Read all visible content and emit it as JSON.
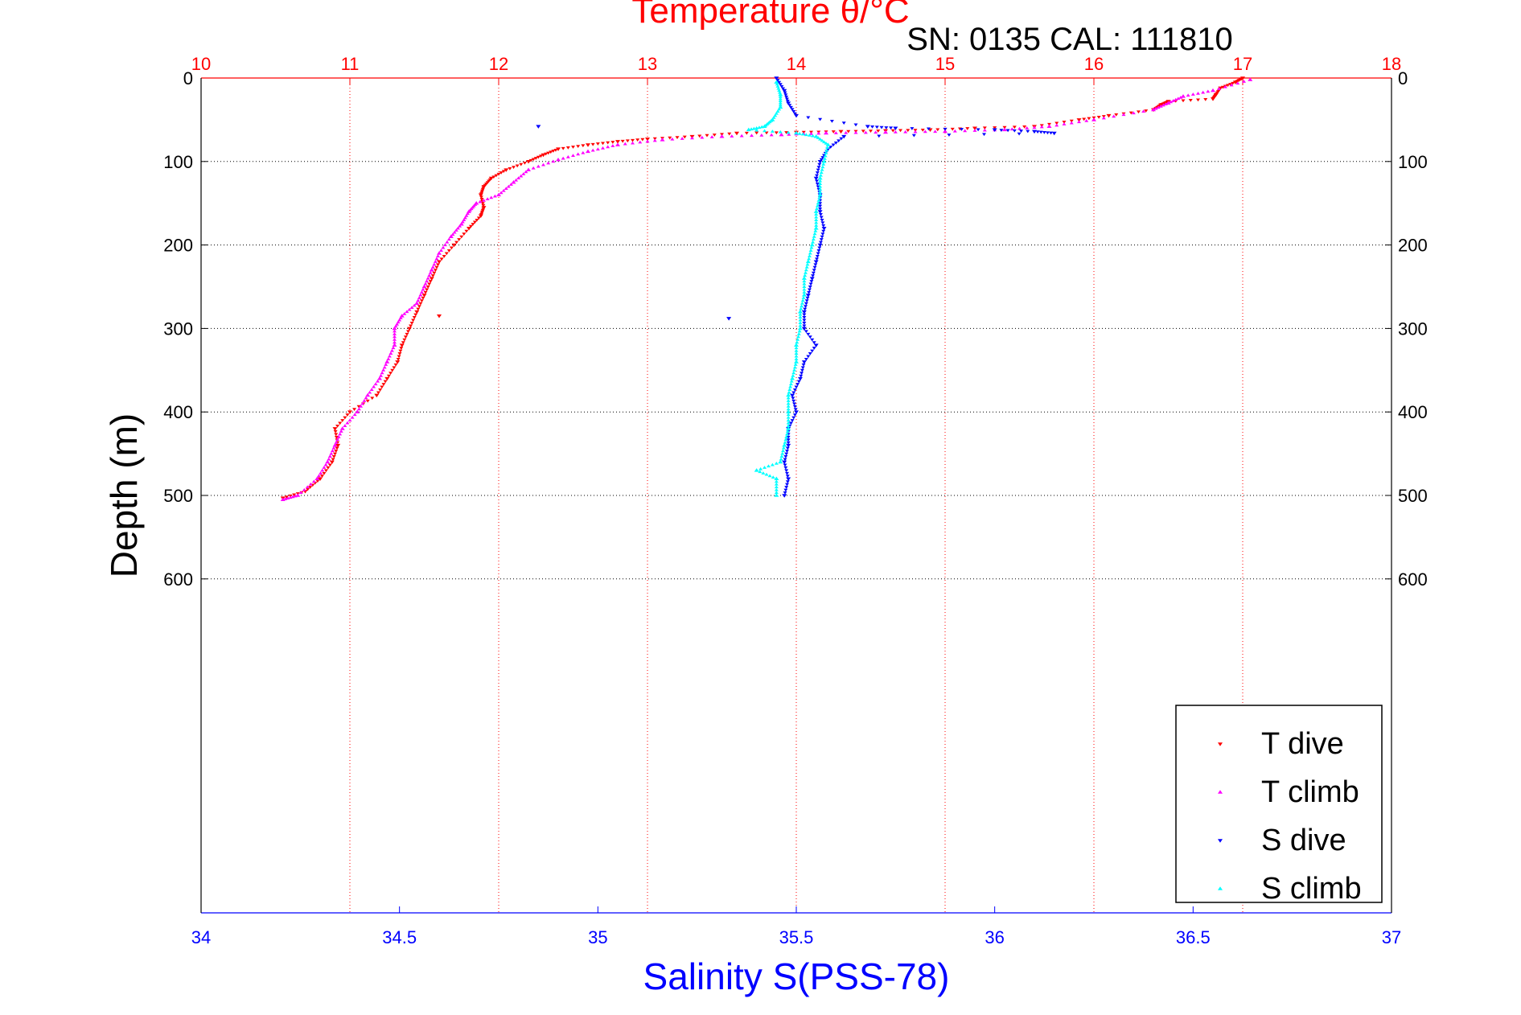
{
  "chart_data": {
    "type": "scatter",
    "title": "Temperature θ/°C",
    "annotation": "SN: 0135  CAL: 111810",
    "xlabel": "Salinity S(PSS-78)",
    "ylabel": "Depth (m)",
    "grid": true,
    "legend_position": "bottom-right",
    "temperature_axis": {
      "position": "top",
      "color": "#ff0000",
      "range": [
        10,
        18
      ],
      "ticks": [
        "10",
        "11",
        "12",
        "13",
        "14",
        "15",
        "16",
        "17",
        "18"
      ]
    },
    "salinity_axis": {
      "position": "bottom",
      "color": "#0000ff",
      "range": [
        34,
        37
      ],
      "ticks": [
        "34",
        "34.5",
        "35",
        "35.5",
        "36",
        "36.5",
        "37"
      ]
    },
    "depth_axis": {
      "range": [
        0,
        1000
      ],
      "reversed": true,
      "ticks": [
        "0",
        "100",
        "200",
        "300",
        "400",
        "500",
        "600"
      ]
    },
    "series": [
      {
        "name": "T dive",
        "axis": "temperature",
        "color": "#ff0000",
        "marker": "triangle-down",
        "points": [
          [
            17.0,
            0
          ],
          [
            16.95,
            5
          ],
          [
            16.85,
            12
          ],
          [
            16.82,
            20
          ],
          [
            16.8,
            25
          ],
          [
            16.5,
            28
          ],
          [
            16.45,
            32
          ],
          [
            16.4,
            38
          ],
          [
            16.1,
            45
          ],
          [
            15.9,
            50
          ],
          [
            15.6,
            58
          ],
          [
            15.2,
            60
          ],
          [
            14.9,
            62
          ],
          [
            14.6,
            63
          ],
          [
            14.3,
            64
          ],
          [
            14.0,
            65
          ],
          [
            13.6,
            66
          ],
          [
            13.3,
            70
          ],
          [
            13.0,
            73
          ],
          [
            12.8,
            76
          ],
          [
            12.6,
            80
          ],
          [
            12.4,
            85
          ],
          [
            12.3,
            92
          ],
          [
            12.2,
            100
          ],
          [
            12.05,
            110
          ],
          [
            11.95,
            120
          ],
          [
            11.9,
            130
          ],
          [
            11.88,
            140
          ],
          [
            11.9,
            155
          ],
          [
            11.88,
            165
          ],
          [
            11.8,
            180
          ],
          [
            11.7,
            200
          ],
          [
            11.6,
            220
          ],
          [
            11.55,
            240
          ],
          [
            11.5,
            260
          ],
          [
            11.45,
            280
          ],
          [
            11.4,
            300
          ],
          [
            11.35,
            320
          ],
          [
            11.32,
            340
          ],
          [
            11.25,
            360
          ],
          [
            11.18,
            380
          ],
          [
            11.0,
            400
          ],
          [
            10.9,
            420
          ],
          [
            10.92,
            440
          ],
          [
            10.88,
            460
          ],
          [
            10.8,
            480
          ],
          [
            10.7,
            495
          ],
          [
            10.55,
            503
          ],
          [
            11.6,
            285
          ]
        ]
      },
      {
        "name": "T climb",
        "axis": "temperature",
        "color": "#ff00ff",
        "marker": "triangle-up",
        "points": [
          [
            17.05,
            2
          ],
          [
            16.8,
            15
          ],
          [
            16.6,
            22
          ],
          [
            16.5,
            30
          ],
          [
            16.4,
            38
          ],
          [
            16.0,
            50
          ],
          [
            15.7,
            58
          ],
          [
            15.4,
            62
          ],
          [
            15.0,
            64
          ],
          [
            14.6,
            65
          ],
          [
            14.2,
            66
          ],
          [
            13.9,
            68
          ],
          [
            13.5,
            70
          ],
          [
            13.1,
            74
          ],
          [
            12.8,
            80
          ],
          [
            12.6,
            88
          ],
          [
            12.4,
            98
          ],
          [
            12.2,
            110
          ],
          [
            12.1,
            125
          ],
          [
            12.0,
            140
          ],
          [
            11.85,
            150
          ],
          [
            11.8,
            160
          ],
          [
            11.75,
            175
          ],
          [
            11.68,
            190
          ],
          [
            11.6,
            210
          ],
          [
            11.55,
            230
          ],
          [
            11.5,
            250
          ],
          [
            11.45,
            270
          ],
          [
            11.35,
            285
          ],
          [
            11.3,
            300
          ],
          [
            11.3,
            320
          ],
          [
            11.25,
            340
          ],
          [
            11.2,
            360
          ],
          [
            11.12,
            380
          ],
          [
            11.05,
            400
          ],
          [
            10.95,
            420
          ],
          [
            10.9,
            440
          ],
          [
            10.85,
            460
          ],
          [
            10.78,
            480
          ],
          [
            10.65,
            500
          ],
          [
            10.55,
            505
          ]
        ]
      },
      {
        "name": "S dive",
        "axis": "salinity",
        "color": "#0000ff",
        "marker": "triangle-down",
        "points": [
          [
            35.45,
            0
          ],
          [
            35.47,
            15
          ],
          [
            35.48,
            30
          ],
          [
            35.5,
            45
          ],
          [
            35.68,
            58
          ],
          [
            35.75,
            60
          ],
          [
            36.0,
            62
          ],
          [
            36.1,
            64
          ],
          [
            36.15,
            66
          ],
          [
            35.62,
            70
          ],
          [
            35.58,
            85
          ],
          [
            35.56,
            100
          ],
          [
            35.55,
            120
          ],
          [
            35.56,
            140
          ],
          [
            35.56,
            160
          ],
          [
            35.57,
            180
          ],
          [
            35.56,
            200
          ],
          [
            35.55,
            220
          ],
          [
            35.54,
            240
          ],
          [
            35.53,
            260
          ],
          [
            35.52,
            280
          ],
          [
            35.52,
            300
          ],
          [
            35.55,
            320
          ],
          [
            35.52,
            340
          ],
          [
            35.51,
            360
          ],
          [
            35.49,
            380
          ],
          [
            35.5,
            400
          ],
          [
            35.48,
            420
          ],
          [
            35.48,
            440
          ],
          [
            35.47,
            460
          ],
          [
            35.48,
            480
          ],
          [
            35.47,
            500
          ],
          [
            34.85,
            58
          ],
          [
            35.33,
            288
          ]
        ]
      },
      {
        "name": "S climb",
        "axis": "salinity",
        "color": "#00ffff",
        "marker": "triangle-up",
        "points": [
          [
            35.45,
            5
          ],
          [
            35.46,
            20
          ],
          [
            35.46,
            35
          ],
          [
            35.44,
            50
          ],
          [
            35.42,
            58
          ],
          [
            35.38,
            62
          ],
          [
            35.5,
            66
          ],
          [
            35.55,
            70
          ],
          [
            35.58,
            80
          ],
          [
            35.57,
            100
          ],
          [
            35.56,
            120
          ],
          [
            35.56,
            140
          ],
          [
            35.55,
            160
          ],
          [
            35.55,
            180
          ],
          [
            35.54,
            200
          ],
          [
            35.53,
            220
          ],
          [
            35.52,
            240
          ],
          [
            35.52,
            260
          ],
          [
            35.51,
            280
          ],
          [
            35.51,
            300
          ],
          [
            35.5,
            320
          ],
          [
            35.5,
            340
          ],
          [
            35.49,
            360
          ],
          [
            35.48,
            380
          ],
          [
            35.48,
            400
          ],
          [
            35.48,
            420
          ],
          [
            35.47,
            440
          ],
          [
            35.46,
            460
          ],
          [
            35.4,
            470
          ],
          [
            35.45,
            480
          ],
          [
            35.45,
            500
          ]
        ]
      }
    ]
  }
}
